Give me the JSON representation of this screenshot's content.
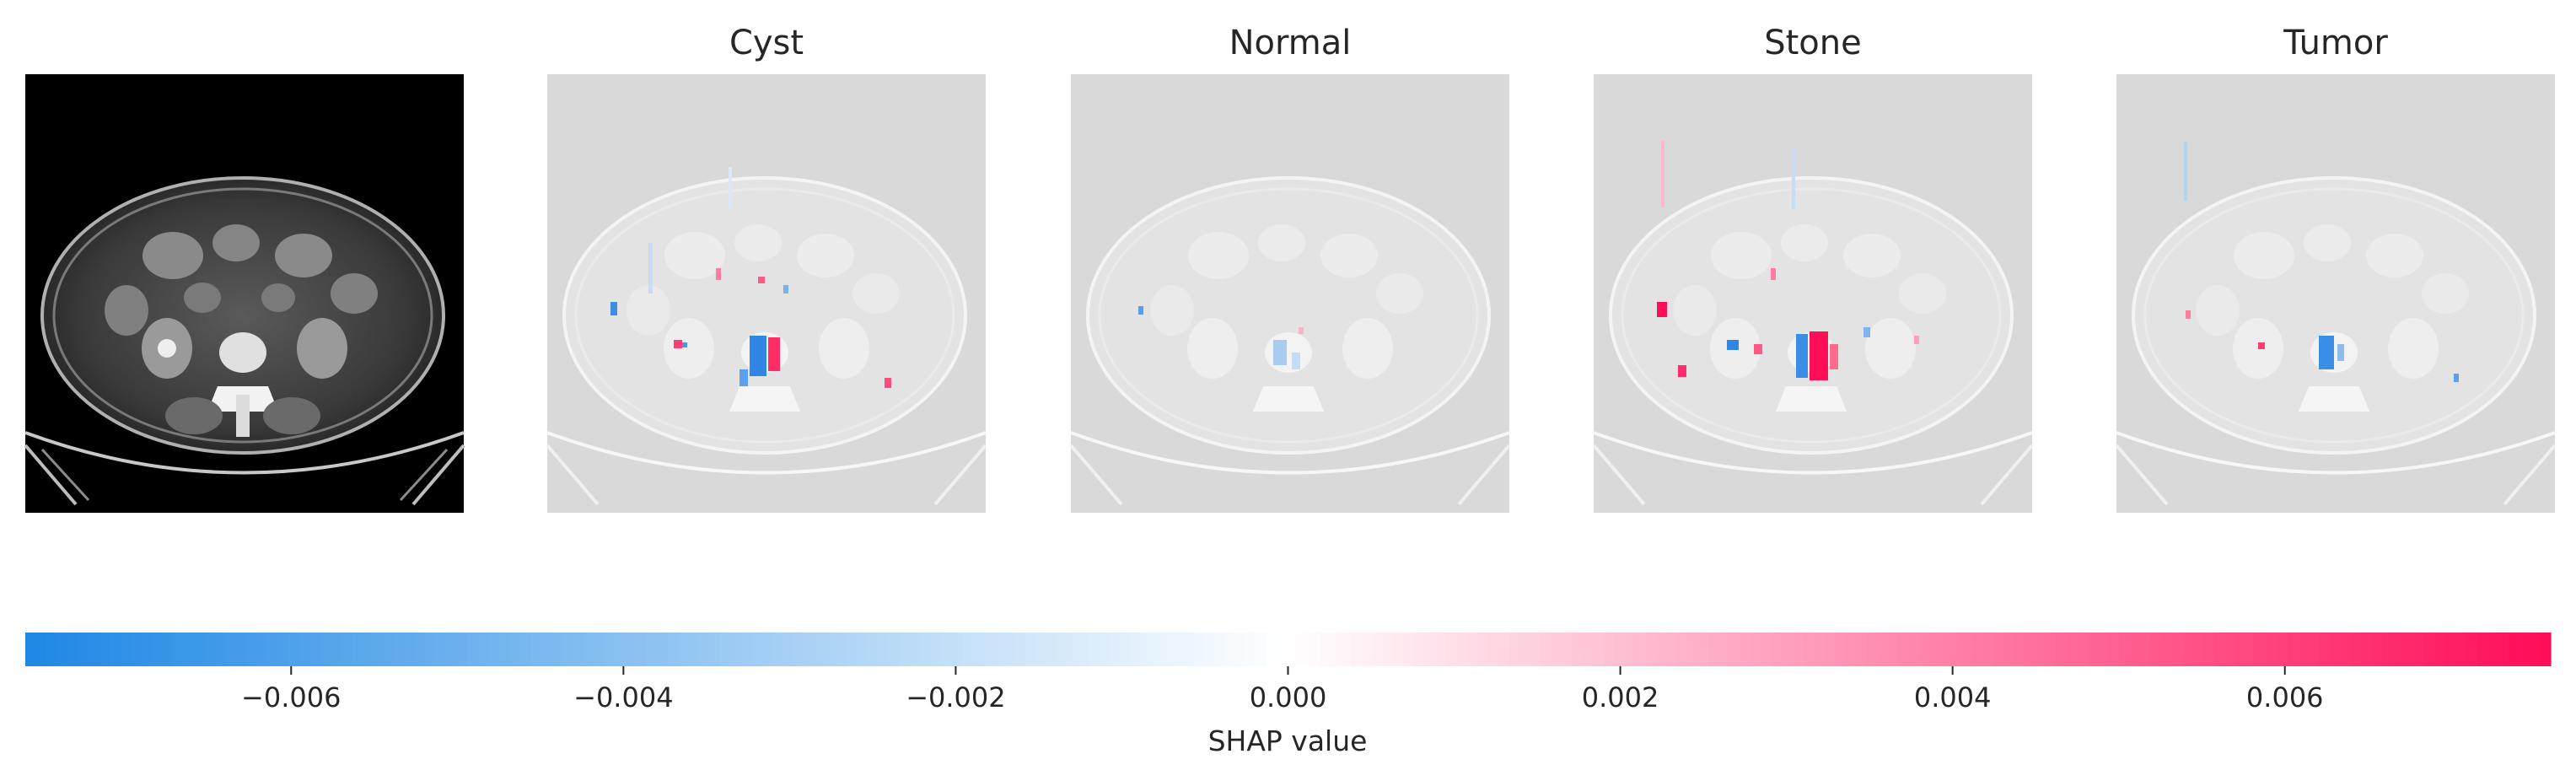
{
  "chart_data": {
    "type": "heatmap",
    "description_visible": "SHAP explanation images for a CT slice: original plus one map per class",
    "panels": [
      {
        "id": "original",
        "title": ""
      },
      {
        "id": "cyst",
        "title": "Cyst"
      },
      {
        "id": "normal",
        "title": "Normal"
      },
      {
        "id": "stone",
        "title": "Stone"
      },
      {
        "id": "tumor",
        "title": "Tumor"
      }
    ],
    "colorbar": {
      "label": "SHAP value",
      "range": [
        -0.0076,
        0.0076
      ],
      "ticks": [
        -0.006,
        -0.004,
        -0.002,
        0.0,
        0.002,
        0.004,
        0.006
      ],
      "tick_labels": [
        "−0.006",
        "−0.004",
        "−0.002",
        "0.000",
        "0.002",
        "0.004",
        "0.006"
      ],
      "colors": {
        "negative": "#1e88e5",
        "neutral": "#ffffff",
        "positive": "#ff0d57"
      }
    },
    "background_gray": "#d9d9d9"
  }
}
